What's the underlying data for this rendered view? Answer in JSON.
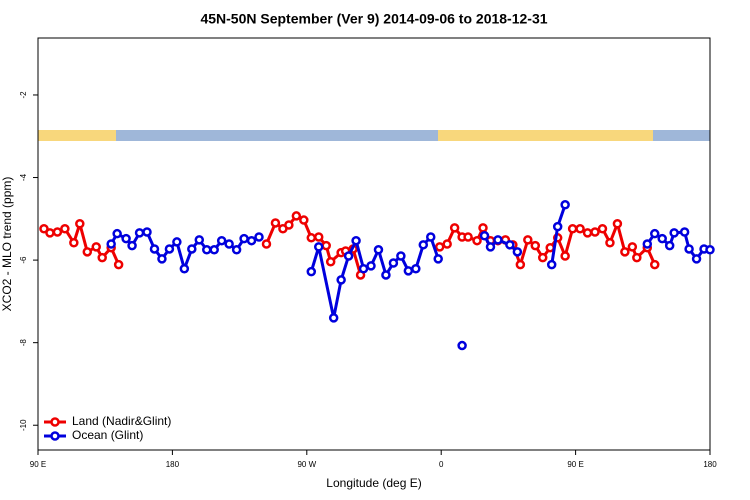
{
  "chart_data": {
    "type": "line",
    "title": "45N-50N September (Ver 9)   2014-09-06 to 2018-12-31",
    "xlabel": "Longitude (deg E)",
    "ylabel": "XCO2 - MLO trend (ppm)",
    "xlim": [
      90,
      540
    ],
    "xticks": [
      {
        "value": 90,
        "label": "90 E"
      },
      180,
      {
        "value": 270,
        "label": "90 W"
      },
      {
        "value": 360,
        "label": "0"
      },
      {
        "value": 450,
        "label": "90 E"
      },
      {
        "value": 540,
        "label": "180"
      }
    ],
    "ylim": [
      -10.6,
      -0.62
    ],
    "yticks": [
      -2,
      -4,
      -6,
      -8,
      -10
    ],
    "legend": "bottom-left",
    "series": [
      {
        "name": "Land (Nadir&Glint)",
        "color": "#ee0000",
        "x": [
          94,
          98,
          103,
          108,
          114,
          118,
          123,
          129,
          133,
          139,
          144,
          null,
          243,
          249,
          254,
          258,
          263,
          268,
          273,
          278,
          283,
          286,
          293,
          296,
          301,
          306,
          null,
          359,
          364,
          369,
          374,
          378,
          384,
          388,
          393,
          398,
          403,
          408,
          413,
          418,
          423,
          428,
          433,
          438,
          443,
          448,
          453,
          458,
          463,
          468,
          473,
          478,
          483,
          488,
          491,
          498,
          503
        ],
        "values": [
          -5.24,
          -5.34,
          -5.32,
          -5.24,
          -5.58,
          -5.12,
          -5.8,
          -5.68,
          -5.94,
          -5.7,
          -6.11,
          null,
          -5.61,
          -5.1,
          -5.24,
          -5.15,
          -4.93,
          -5.03,
          -5.46,
          -5.44,
          -5.65,
          -6.04,
          -5.82,
          -5.78,
          -5.73,
          -6.36,
          null,
          -5.68,
          -5.61,
          -5.22,
          -5.44,
          -5.44,
          -5.53,
          -5.22,
          -5.53,
          -5.53,
          -5.51,
          -5.63,
          -6.11,
          -5.51,
          -5.65,
          -5.94,
          -5.7,
          -5.46,
          -5.9,
          -5.24,
          -5.24,
          -5.34,
          -5.32,
          -5.24,
          -5.58,
          -5.12,
          -5.8,
          -5.68,
          -5.94,
          -5.7,
          -6.11
        ]
      },
      {
        "name": "Ocean (Glint)",
        "color": "#0000dd",
        "x": [
          139,
          143,
          149,
          153,
          158,
          163,
          168,
          173,
          178,
          183,
          188,
          193,
          198,
          203,
          208,
          213,
          218,
          223,
          228,
          233,
          238,
          null,
          273,
          278,
          288,
          293,
          298,
          303,
          308,
          313,
          318,
          323,
          328,
          333,
          338,
          343,
          348,
          353,
          358,
          null,
          374,
          null,
          389,
          393,
          398,
          406,
          411,
          null,
          434,
          438,
          443,
          null,
          498,
          503,
          508,
          513,
          516,
          523,
          526,
          531,
          536,
          540
        ],
        "values": [
          -5.61,
          -5.36,
          -5.48,
          -5.65,
          -5.34,
          -5.32,
          -5.73,
          -5.97,
          -5.73,
          -5.56,
          -6.21,
          -5.73,
          -5.51,
          -5.75,
          -5.75,
          -5.53,
          -5.61,
          -5.75,
          -5.48,
          -5.53,
          -5.44,
          null,
          -6.28,
          -5.68,
          -7.4,
          -6.48,
          -5.9,
          -5.53,
          -6.21,
          -6.14,
          -5.75,
          -6.36,
          -6.07,
          -5.9,
          -6.26,
          -6.21,
          -5.63,
          -5.44,
          -5.97,
          null,
          -8.07,
          null,
          -5.41,
          -5.68,
          -5.51,
          -5.63,
          -5.8,
          null,
          -6.11,
          -5.19,
          -4.66,
          null,
          -5.61,
          -5.36,
          -5.48,
          -5.65,
          -5.34,
          -5.32,
          -5.73,
          -5.97,
          -5.73,
          -5.75
        ]
      }
    ]
  }
}
